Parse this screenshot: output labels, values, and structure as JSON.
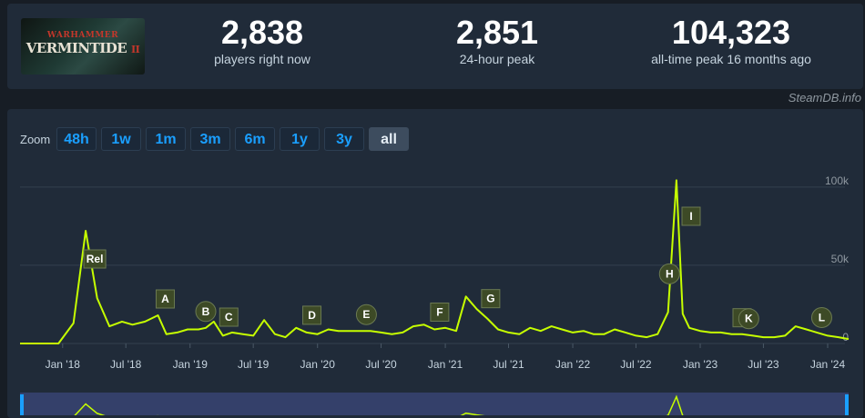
{
  "game": {
    "logo_top": "WARHAMMER",
    "logo_main": "VERMINTIDE",
    "logo_numeral": "II"
  },
  "stats": [
    {
      "value": "2,838",
      "label": "players right now"
    },
    {
      "value": "2,851",
      "label": "24-hour peak"
    },
    {
      "value": "104,323",
      "label": "all-time peak 16 months ago"
    }
  ],
  "credit": "SteamDB.info",
  "zoom": {
    "label": "Zoom",
    "options": [
      "48h",
      "1w",
      "1m",
      "3m",
      "6m",
      "1y",
      "3y",
      "all"
    ],
    "active": "all"
  },
  "colors": {
    "line": "#c6ff00",
    "accent": "#1a9fff",
    "marker_bg": "#3d4a26"
  },
  "chart_data": {
    "type": "line",
    "xlabel": "",
    "ylabel": "",
    "x_ticks": [
      "Jan '18",
      "Jul '18",
      "Jan '19",
      "Jul '19",
      "Jan '20",
      "Jul '20",
      "Jan '21",
      "Jul '21",
      "Jan '22",
      "Jul '22",
      "Jan '23",
      "Jul '23",
      "Jan '24"
    ],
    "y_ticks": [
      "0",
      "50k",
      "100k"
    ],
    "ylim": [
      0,
      115000
    ],
    "xlim": [
      "2017-09-01",
      "2024-03-01"
    ],
    "grid": true,
    "series": [
      {
        "x": [
          "2017-09-01",
          "2017-11-01",
          "2017-12-20",
          "2018-02-01",
          "2018-03-08",
          "2018-04-10",
          "2018-05-15",
          "2018-06-20",
          "2018-07-20",
          "2018-08-25",
          "2018-10-01",
          "2018-10-25",
          "2018-11-25",
          "2018-12-25",
          "2019-01-25",
          "2019-02-15",
          "2019-03-10",
          "2019-04-05",
          "2019-05-01",
          "2019-06-01",
          "2019-07-01",
          "2019-08-01",
          "2019-09-01",
          "2019-10-01",
          "2019-11-01",
          "2019-12-01",
          "2020-01-01",
          "2020-02-01",
          "2020-03-01",
          "2020-04-01",
          "2020-05-01",
          "2020-06-01",
          "2020-07-01",
          "2020-08-01",
          "2020-09-01",
          "2020-10-01",
          "2020-11-01",
          "2020-12-01",
          "2021-01-01",
          "2021-02-01",
          "2021-03-01",
          "2021-04-01",
          "2021-05-01",
          "2021-06-01",
          "2021-07-01",
          "2021-08-01",
          "2021-09-01",
          "2021-10-01",
          "2021-11-01",
          "2021-12-01",
          "2022-01-01",
          "2022-02-01",
          "2022-03-01",
          "2022-04-01",
          "2022-05-01",
          "2022-06-01",
          "2022-07-01",
          "2022-08-01",
          "2022-09-01",
          "2022-10-01",
          "2022-10-25",
          "2022-11-12",
          "2022-12-01",
          "2023-01-01",
          "2023-02-01",
          "2023-03-01",
          "2023-04-01",
          "2023-05-01",
          "2023-06-01",
          "2023-07-01",
          "2023-08-01",
          "2023-09-01",
          "2023-10-01",
          "2023-11-01",
          "2023-12-01",
          "2024-01-01",
          "2024-02-01",
          "2024-03-01"
        ],
        "y": [
          0,
          0,
          0,
          13000,
          72000,
          29000,
          11000,
          14000,
          12000,
          14000,
          18000,
          6000,
          7000,
          9000,
          9000,
          10000,
          14000,
          5000,
          7000,
          6000,
          5000,
          15000,
          6000,
          4000,
          10000,
          7000,
          6000,
          9000,
          8000,
          8000,
          8000,
          8000,
          7000,
          6000,
          7000,
          11000,
          12000,
          9000,
          10000,
          8000,
          30000,
          22000,
          16000,
          9000,
          7000,
          6000,
          10000,
          8000,
          11000,
          9000,
          7000,
          8000,
          6000,
          6000,
          9000,
          7000,
          5000,
          4000,
          6000,
          20000,
          104323,
          19000,
          10000,
          8000,
          7000,
          7000,
          6000,
          6000,
          5000,
          4000,
          4000,
          5000,
          11000,
          9000,
          7000,
          5000,
          4000,
          2838
        ]
      }
    ],
    "annotations": [
      {
        "label": "Rel",
        "x": "2018-03-08"
      },
      {
        "label": "A",
        "x": "2018-10-01"
      },
      {
        "label": "B",
        "x": "2019-02-15"
      },
      {
        "label": "C",
        "x": "2019-04-01"
      },
      {
        "label": "D",
        "x": "2019-11-25"
      },
      {
        "label": "E",
        "x": "2020-05-20"
      },
      {
        "label": "F",
        "x": "2020-11-25"
      },
      {
        "label": "G",
        "x": "2021-04-20"
      },
      {
        "label": "H",
        "x": "2022-10-05"
      },
      {
        "label": "I",
        "x": "2022-11-15"
      },
      {
        "label": "J",
        "x": "2023-04-10"
      },
      {
        "label": "K",
        "x": "2023-05-20"
      },
      {
        "label": "L",
        "x": "2023-12-15"
      }
    ]
  }
}
